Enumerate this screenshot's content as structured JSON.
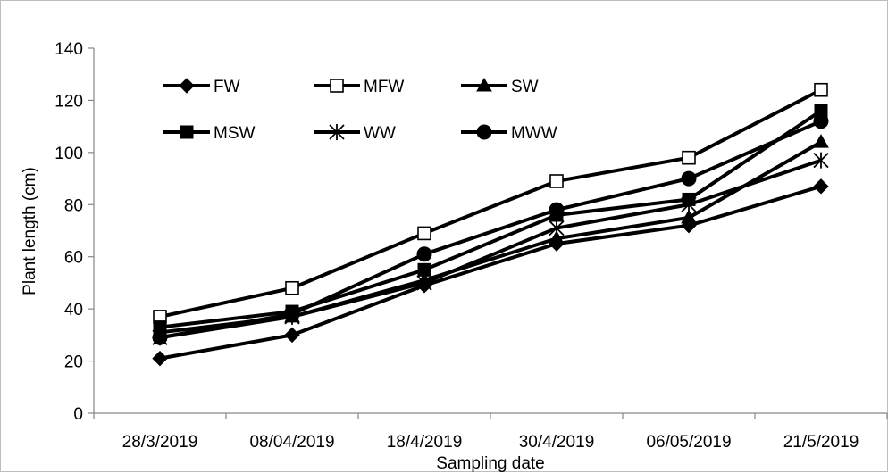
{
  "chart_data": {
    "type": "line",
    "title": "",
    "xlabel": "Sampling date",
    "ylabel": "Plant length (cm)",
    "categories": [
      "28/3/2019",
      "08/04/2019",
      "18/4/2019",
      "30/4/2019",
      "06/05/2019",
      "21/5/2019"
    ],
    "ylim": [
      0,
      140
    ],
    "yticks": [
      "0",
      "20",
      "40",
      "60",
      "80",
      "100",
      "120",
      "140"
    ],
    "grid": false,
    "legend_position": "top-left",
    "series": [
      {
        "name": "FW",
        "marker": "diamond",
        "values": [
          21,
          30,
          49,
          65,
          72,
          87
        ]
      },
      {
        "name": "MFW",
        "marker": "square-open",
        "values": [
          37,
          48,
          69,
          89,
          98,
          124
        ]
      },
      {
        "name": "SW",
        "marker": "triangle",
        "values": [
          31,
          37,
          51,
          67,
          75,
          104
        ]
      },
      {
        "name": "MSW",
        "marker": "square",
        "values": [
          33,
          39,
          55,
          76,
          82,
          116
        ]
      },
      {
        "name": "WW",
        "marker": "asterisk",
        "values": [
          29,
          37,
          50,
          71,
          80,
          97
        ]
      },
      {
        "name": "MWW",
        "marker": "circle",
        "values": [
          29,
          38,
          61,
          78,
          90,
          112
        ]
      }
    ],
    "colors": {
      "line": "#000000",
      "open_fill": "#ffffff"
    }
  }
}
